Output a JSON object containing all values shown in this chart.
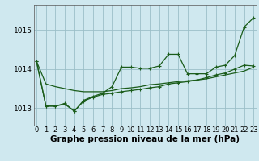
{
  "title": "Graphe pression niveau de la mer (hPa)",
  "hours": [
    0,
    1,
    2,
    3,
    4,
    5,
    6,
    7,
    8,
    9,
    10,
    11,
    12,
    13,
    14,
    15,
    16,
    17,
    18,
    19,
    20,
    21,
    22,
    23
  ],
  "line_smooth": [
    1014.2,
    1013.62,
    1013.55,
    1013.5,
    1013.45,
    1013.42,
    1013.42,
    1013.42,
    1013.45,
    1013.5,
    1013.52,
    1013.55,
    1013.6,
    1013.62,
    1013.65,
    1013.68,
    1013.7,
    1013.72,
    1013.75,
    1013.8,
    1013.85,
    1013.9,
    1013.95,
    1014.05
  ],
  "line_mid": [
    1014.2,
    1013.05,
    1013.05,
    1013.1,
    1012.92,
    1013.18,
    1013.28,
    1013.35,
    1013.38,
    1013.42,
    1013.45,
    1013.48,
    1013.52,
    1013.55,
    1013.62,
    1013.65,
    1013.68,
    1013.72,
    1013.78,
    1013.85,
    1013.9,
    1014.0,
    1014.1,
    1014.08
  ],
  "line_peak": [
    1014.2,
    1013.05,
    1013.05,
    1013.12,
    1012.92,
    1013.2,
    1013.3,
    1013.38,
    1013.55,
    1014.05,
    1014.05,
    1014.02,
    1014.02,
    1014.08,
    1014.38,
    1014.38,
    1013.88,
    1013.88,
    1013.88,
    1014.05,
    1014.1,
    1014.35,
    1015.08,
    1015.32
  ],
  "line_color": "#1a5c1a",
  "marker": "+",
  "marker_size": 3,
  "lw": 0.9,
  "bg_color": "#cfe8ef",
  "grid_color": "#9bbfc8",
  "yticks": [
    1013,
    1014,
    1015
  ],
  "ylim": [
    1012.55,
    1015.65
  ],
  "xlim": [
    -0.3,
    23.3
  ],
  "tick_fontsize": 6,
  "label_fontsize": 7.5
}
